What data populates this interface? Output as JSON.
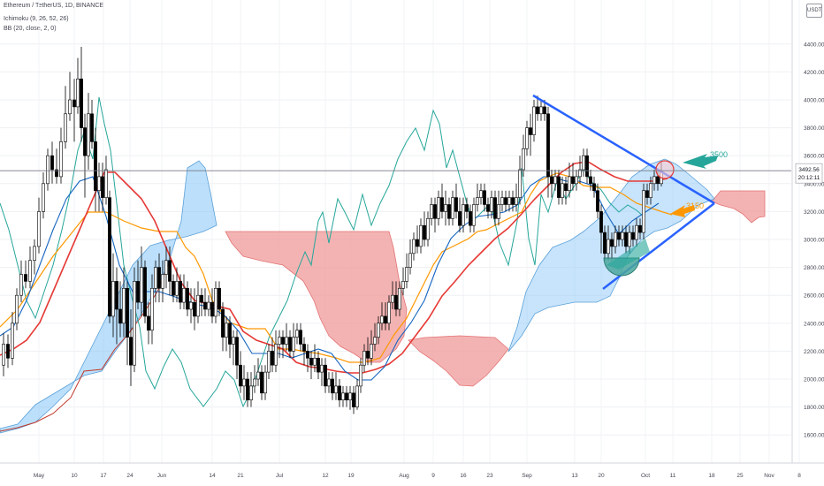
{
  "header": {
    "symbol_line": "Ethereum / TetherUS, 1D, BINANCE",
    "indicator_1": "Ichimoku (9, 26, 52, 26)",
    "indicator_2": "BB (20, close, 2, 0)",
    "currency_badge": "USDT"
  },
  "price_axis": {
    "ticks": [
      "4400.00",
      "4200.00",
      "4000.00",
      "3800.00",
      "3600.00",
      "3400.00",
      "3200.00",
      "3000.00",
      "2800.00",
      "2600.00",
      "2400.00",
      "2200.00",
      "2000.00",
      "1800.00",
      "1600.00"
    ],
    "current_price": "3492.56",
    "countdown": "20:12:11"
  },
  "time_axis": {
    "labels": [
      "May",
      "10",
      "17",
      "24",
      "Jun",
      "14",
      "21",
      "Jul",
      "12",
      "19",
      "Aug",
      "9",
      "16",
      "23",
      "Sep",
      "13",
      "20",
      "Oct",
      "11",
      "18",
      "25",
      "Nov",
      "8"
    ]
  },
  "annotations": {
    "label_upper": "3500",
    "label_lower": "3150"
  },
  "colors": {
    "up_candle": "#ffffff",
    "down_candle": "#000000",
    "bb_basis": "#e53935",
    "kijun": "#ff9800",
    "tenkan": "#1565c0",
    "chikou": "#26a69a",
    "cloud_bull": "#90caf9",
    "cloud_bear": "#ef9a9a",
    "triangle": "#2962ff",
    "arrow_teal": "#26a69a",
    "arrow_orange": "#ff9800"
  },
  "chart_data": {
    "type": "candlestick",
    "symbol": "ETHUSDT",
    "interval": "1D",
    "exchange": "BINANCE",
    "ylim": [
      1500,
      4500
    ],
    "x_range": [
      "2021-04-20",
      "2021-11-10"
    ],
    "last_price": 3492.56,
    "series": [
      {
        "name": "price",
        "x": [
          "2021-04-20",
          "2021-05-01",
          "2021-05-10",
          "2021-05-12",
          "2021-05-17",
          "2021-05-19",
          "2021-05-24",
          "2021-06-01",
          "2021-06-14",
          "2021-06-21",
          "2021-06-26",
          "2021-07-01",
          "2021-07-12",
          "2021-07-20",
          "2021-07-26",
          "2021-08-01",
          "2021-08-09",
          "2021-08-16",
          "2021-08-23",
          "2021-09-01",
          "2021-09-03",
          "2021-09-07",
          "2021-09-13",
          "2021-09-20",
          "2021-09-22",
          "2021-09-28",
          "2021-10-01",
          "2021-10-05"
        ],
        "values": [
          2150,
          2900,
          4150,
          3850,
          3300,
          2450,
          2550,
          2650,
          2450,
          2000,
          1800,
          2150,
          2000,
          1850,
          2150,
          2700,
          3200,
          3250,
          3250,
          3500,
          3950,
          3450,
          3350,
          2950,
          3050,
          2850,
          3350,
          3492
        ]
      },
      {
        "name": "BB (20, close, 2, 0)",
        "x": [
          "2021-04-20",
          "2021-05-10",
          "2021-05-20",
          "2021-06-01",
          "2021-06-20",
          "2021-07-10",
          "2021-07-25",
          "2021-08-10",
          "2021-08-25",
          "2021-09-10",
          "2021-09-25",
          "2021-10-05"
        ],
        "values": [
          2250,
          3000,
          3350,
          2950,
          2600,
          2250,
          2150,
          2550,
          3150,
          3500,
          3200,
          3400
        ]
      }
    ],
    "annotations": [
      "3500",
      "3150"
    ]
  }
}
